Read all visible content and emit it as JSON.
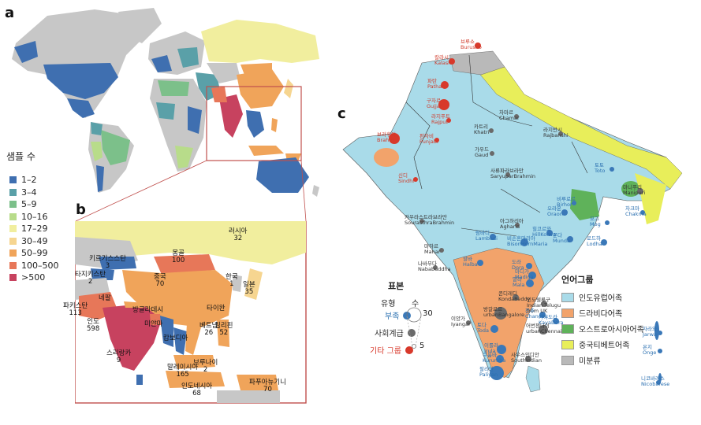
{
  "panels": {
    "a": "a",
    "b": "b",
    "c": "c"
  },
  "world_legend": {
    "title": "샘플 수",
    "items": [
      {
        "label": "1–2",
        "color": "#3f6fb0"
      },
      {
        "label": "3–4",
        "color": "#5aa0a8"
      },
      {
        "label": "5–9",
        "color": "#7cc08a"
      },
      {
        "label": "10–16",
        "color": "#b8dc8a"
      },
      {
        "label": "17–29",
        "color": "#f1ee9e"
      },
      {
        "label": "30–49",
        "color": "#f6d590"
      },
      {
        "label": "50–99",
        "color": "#f0a45a"
      },
      {
        "label": "100–500",
        "color": "#e77759"
      },
      {
        "label": ">500",
        "color": "#c7425f"
      }
    ]
  },
  "asia_countries": [
    {
      "name": "러시아",
      "count": "32"
    },
    {
      "name": "키르기스스탄",
      "count": "3"
    },
    {
      "name": "몽골",
      "count": "100"
    },
    {
      "name": "타지키스탄",
      "count": "2"
    },
    {
      "name": "중국",
      "count": "70"
    },
    {
      "name": "한국",
      "count": "1"
    },
    {
      "name": "일본",
      "count": "35"
    },
    {
      "name": "파키스탄",
      "count": "113"
    },
    {
      "name": "네팔",
      "count": ""
    },
    {
      "name": "방글라데시",
      "count": ""
    },
    {
      "name": "타이완",
      "count": ""
    },
    {
      "name": "인도",
      "count": "598"
    },
    {
      "name": "미얀마",
      "count": ""
    },
    {
      "name": "베트남",
      "count": "26"
    },
    {
      "name": "필리핀",
      "count": "52"
    },
    {
      "name": "캄보디아",
      "count": ""
    },
    {
      "name": "스리랑카",
      "count": "9"
    },
    {
      "name": "브루나이",
      "count": "2"
    },
    {
      "name": "말레이시아",
      "count": "165"
    },
    {
      "name": "인도네시아",
      "count": "68"
    },
    {
      "name": "파푸아뉴기니",
      "count": "70"
    }
  ],
  "south_asia_groups": [
    {
      "name": "브루쇼\nBurusho",
      "kind": "red"
    },
    {
      "name": "칼라시\nKalash",
      "kind": "red"
    },
    {
      "name": "파탄\nPathan",
      "kind": "red"
    },
    {
      "name": "구자르\nGujjar",
      "kind": "red"
    },
    {
      "name": "라지푸트\nRajput",
      "kind": "red"
    },
    {
      "name": "펀자비\nPunjabi",
      "kind": "red"
    },
    {
      "name": "브라후이\nBrahui",
      "kind": "red"
    },
    {
      "name": "신디\nSindhi",
      "kind": "red"
    },
    {
      "name": "차마르\nChamar",
      "kind": "grey"
    },
    {
      "name": "카트리\nKhatri",
      "kind": "grey"
    },
    {
      "name": "가우드\nGaud",
      "kind": "grey"
    },
    {
      "name": "라지반시\nRajbanshi",
      "kind": "grey"
    },
    {
      "name": "사류파라브라만\nSaryuparBrahmin",
      "kind": "grey"
    },
    {
      "name": "카우라스트라브라만\nSourasthraBrahmin",
      "kind": "grey"
    },
    {
      "name": "아그하리아\nAgharia",
      "kind": "grey"
    },
    {
      "name": "람바디\nLambadi",
      "kind": "blue"
    },
    {
      "name": "비루로르\nBirhor",
      "kind": "blue"
    },
    {
      "name": "오라온\nOraon",
      "kind": "blue"
    },
    {
      "name": "문다\nMunda",
      "kind": "blue"
    },
    {
      "name": "로드하\nLodha",
      "kind": "blue"
    },
    {
      "name": "힐코르와\nHillKorwa",
      "kind": "blue"
    },
    {
      "name": "비손혼마리아\nBisonHornMaria",
      "kind": "blue"
    },
    {
      "name": "마하르\nMahar",
      "kind": "grey"
    },
    {
      "name": "할바\nHalba",
      "kind": "blue"
    },
    {
      "name": "나바부다\nNababuddha",
      "kind": "grey"
    },
    {
      "name": "도라\nDora",
      "kind": "blue"
    },
    {
      "name": "마디가\nMadiga",
      "kind": "blue"
    },
    {
      "name": "말라\nMala",
      "kind": "blue"
    },
    {
      "name": "콘디레디\nKondaReddy",
      "kind": "grey"
    },
    {
      "name": "인도텔루구\nIndian Telugu\nfrom UK",
      "kind": "grey"
    },
    {
      "name": "방갈로르\nurbanBangalore",
      "kind": "grey"
    },
    {
      "name": "찬추\nChanchu",
      "kind": "blue"
    },
    {
      "name": "카야도라\nKayaDora",
      "kind": "blue"
    },
    {
      "name": "어번첸나이\nurbanChennai",
      "kind": "grey"
    },
    {
      "name": "이양가\nIyangar",
      "kind": "grey"
    },
    {
      "name": "토다\nToda",
      "kind": "blue"
    },
    {
      "name": "이룰라\nIrula",
      "kind": "blue"
    },
    {
      "name": "쿠룸바\nKurumba",
      "kind": "blue"
    },
    {
      "name": "팔리얀\nPaliyan",
      "kind": "blue"
    },
    {
      "name": "사우스인디안\nSouthIndian",
      "kind": "grey"
    },
    {
      "name": "토토\nToto",
      "kind": "blue"
    },
    {
      "name": "마니푸리\nManipuri",
      "kind": "grey"
    },
    {
      "name": "차크마\nChakma",
      "kind": "blue"
    },
    {
      "name": "모그\nMog",
      "kind": "blue"
    },
    {
      "name": "자라와\nJarwa",
      "kind": "blue"
    },
    {
      "name": "온지\nOnge",
      "kind": "blue"
    },
    {
      "name": "니코바레스\nNicobarese",
      "kind": "blue"
    }
  ],
  "sample_key": {
    "title": "표본",
    "type_head": "유형",
    "size_head": "수",
    "types": [
      {
        "label": "부족",
        "color": "#3a78b8"
      },
      {
        "label": "사회계급",
        "color": "#6a6a6a"
      },
      {
        "label": "기타 그룹",
        "color": "#d8392b"
      }
    ],
    "sizes": [
      "30",
      "5"
    ]
  },
  "language_key": {
    "title": "언어그룹",
    "items": [
      {
        "label": "인도유럽어족",
        "color": "#a9dbe9"
      },
      {
        "label": "드라비다어족",
        "color": "#f2a36b"
      },
      {
        "label": "오스트로아시아어족",
        "color": "#5fb25a"
      },
      {
        "label": "중국티베트어족",
        "color": "#e8ee5a"
      },
      {
        "label": "미분류",
        "color": "#b9b9b9"
      }
    ]
  }
}
